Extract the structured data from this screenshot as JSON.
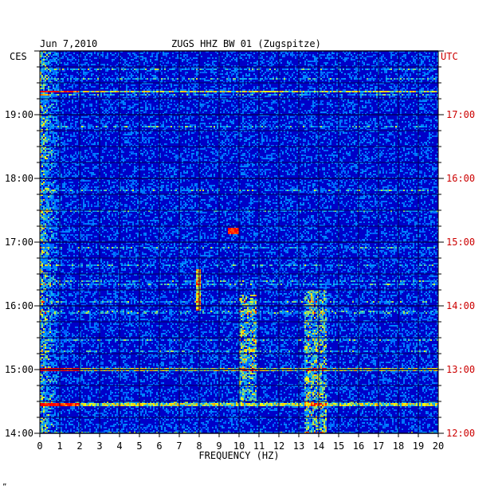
{
  "header": {
    "date": "Jun 7,2010",
    "station": "ZUGS HHZ BW 01 (Zugspitze)"
  },
  "left_axis": {
    "label": "CES",
    "color": "#000000"
  },
  "right_axis": {
    "label": "UTC",
    "color": "#cc0000"
  },
  "footer_mark": "”",
  "chart_data": {
    "type": "heatmap",
    "title": "ZUGS HHZ BW 01 (Zugspitze)",
    "date": "Jun 7,2010",
    "xlabel": "FREQUENCY (HZ)",
    "x_ticks": [
      0,
      1,
      2,
      3,
      4,
      5,
      6,
      7,
      8,
      9,
      10,
      11,
      12,
      13,
      14,
      15,
      16,
      17,
      18,
      19,
      20
    ],
    "xlim": [
      0,
      20
    ],
    "y_left_label": "CES",
    "y_right_label": "UTC",
    "y_left_ticks": [
      "14:00",
      "15:00",
      "16:00",
      "17:00",
      "18:00",
      "19:00"
    ],
    "y_right_ticks": [
      "12:00",
      "13:00",
      "14:00",
      "15:00",
      "16:00",
      "17:00"
    ],
    "ylim_ces_hours": [
      14.0,
      20.0
    ],
    "grid": true,
    "colormap": [
      "#00008b",
      "#0000ff",
      "#00bfff",
      "#ffff00",
      "#ff0000"
    ],
    "features": [
      {
        "type": "spectral_line",
        "freq_hz": 8.0,
        "from_ces": "15:55",
        "to_ces": "16:35"
      },
      {
        "type": "spectral_band",
        "freq_hz": [
          13.3,
          14.4
        ],
        "from_ces": "14:00",
        "to_ces": "16:15"
      },
      {
        "type": "spectral_band",
        "freq_hz": [
          10.0,
          10.9
        ],
        "from_ces": "14:30",
        "to_ces": "16:10"
      },
      {
        "type": "burst",
        "freq_hz": 9.7,
        "at_ces": "17:10"
      },
      {
        "type": "broadband_event",
        "at_ces": "15:00"
      },
      {
        "type": "broadband_event",
        "at_ces": "14:27"
      },
      {
        "type": "broadband_event",
        "at_ces": "19:22"
      }
    ]
  }
}
